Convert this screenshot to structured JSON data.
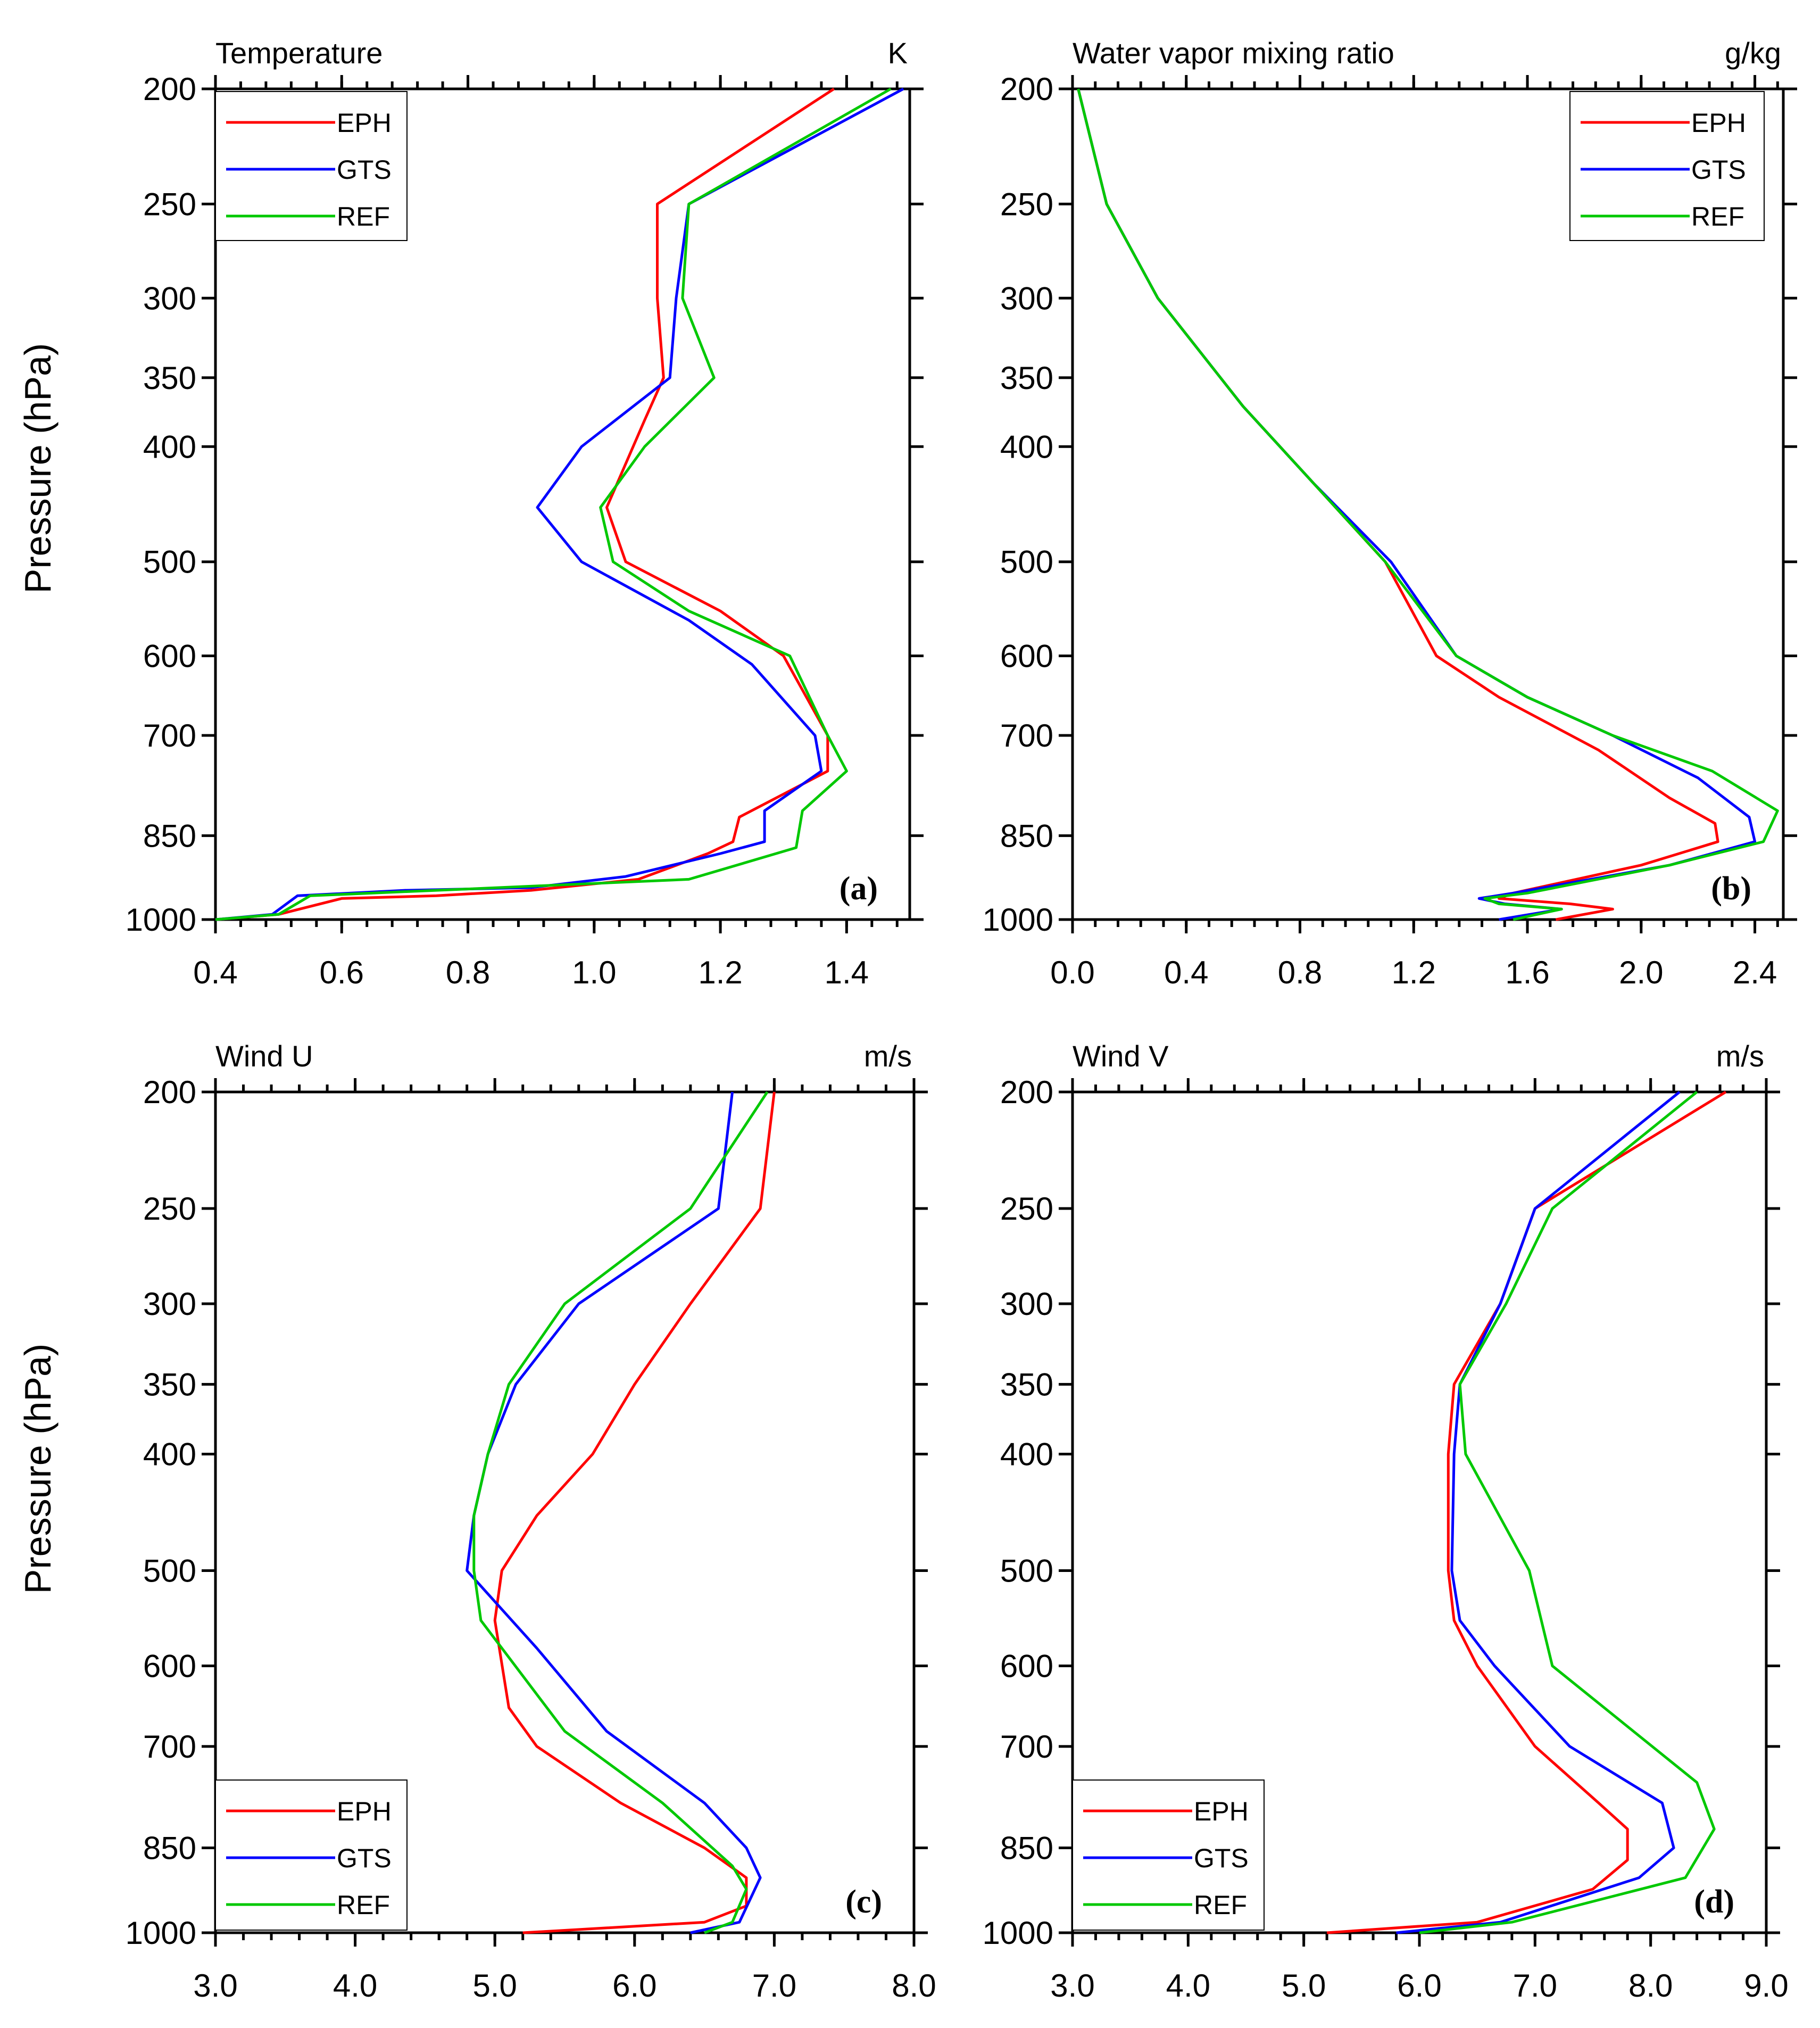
{
  "figure": {
    "ylabel": "Pressure (hPa)"
  },
  "chart_data": [
    {
      "type": "line",
      "panel": "(a)",
      "title": "Temperature",
      "unit": "K",
      "xlim": [
        0.4,
        1.5
      ],
      "xticks": [
        "0.4",
        "0.6",
        "0.8",
        "1.0",
        "1.2",
        "1.4"
      ],
      "xtick_values": [
        0.4,
        0.6,
        0.8,
        1.0,
        1.2,
        1.4
      ],
      "ylabel": "Pressure (hPa)",
      "ylim": [
        1000,
        200
      ],
      "yticks": [
        200,
        250,
        300,
        350,
        400,
        500,
        600,
        700,
        850,
        1000
      ],
      "legend": {
        "position": "top-left",
        "entries": [
          "EPH",
          "GTS",
          "REF"
        ]
      },
      "series": [
        {
          "name": "EPH",
          "color": "#ff0000",
          "x": [
            0.4,
            0.5,
            0.6,
            0.75,
            0.9,
            1.07,
            1.18,
            1.22,
            1.23,
            1.37,
            1.37,
            1.3,
            1.2,
            1.05,
            1.02,
            1.08,
            1.11,
            1.1,
            1.1,
            1.38
          ],
          "y": [
            1000,
            990,
            960,
            955,
            945,
            925,
            880,
            860,
            820,
            750,
            700,
            600,
            550,
            500,
            450,
            380,
            350,
            300,
            250,
            200
          ]
        },
        {
          "name": "GTS",
          "color": "#0000ff",
          "x": [
            0.4,
            0.49,
            0.53,
            0.7,
            0.9,
            1.05,
            1.2,
            1.27,
            1.27,
            1.36,
            1.35,
            1.25,
            1.15,
            0.98,
            0.91,
            0.98,
            1.12,
            1.13,
            1.15,
            1.49
          ],
          "y": [
            1000,
            990,
            955,
            945,
            940,
            920,
            880,
            860,
            810,
            750,
            700,
            610,
            560,
            500,
            450,
            400,
            350,
            300,
            250,
            200
          ]
        },
        {
          "name": "REF",
          "color": "#00c800",
          "x": [
            0.4,
            0.5,
            0.55,
            0.75,
            0.95,
            1.15,
            1.32,
            1.33,
            1.4,
            1.37,
            1.31,
            1.15,
            1.03,
            1.01,
            1.08,
            1.19,
            1.14,
            1.15,
            1.47
          ],
          "y": [
            1000,
            990,
            955,
            945,
            935,
            925,
            870,
            810,
            750,
            700,
            600,
            550,
            500,
            450,
            400,
            350,
            300,
            250,
            200
          ]
        }
      ]
    },
    {
      "type": "line",
      "panel": "(b)",
      "title": "Water vapor mixing ratio",
      "unit": "g/kg",
      "xlim": [
        0.0,
        2.5
      ],
      "xticks": [
        "0.0",
        "0.4",
        "0.8",
        "1.2",
        "1.6",
        "2.0",
        "2.4"
      ],
      "xtick_values": [
        0.0,
        0.4,
        0.8,
        1.2,
        1.6,
        2.0,
        2.4
      ],
      "ylim": [
        1000,
        200
      ],
      "yticks": [
        200,
        250,
        300,
        350,
        400,
        500,
        600,
        700,
        850,
        1000
      ],
      "legend": {
        "position": "top-right",
        "entries": [
          "EPH",
          "GTS",
          "REF"
        ]
      },
      "series": [
        {
          "name": "EPH",
          "color": "#ff0000",
          "x": [
            0.02,
            0.12,
            0.3,
            0.6,
            0.85,
            1.1,
            1.28,
            1.5,
            1.85,
            2.1,
            2.26,
            2.27,
            2.0,
            1.55,
            1.5,
            1.75,
            1.9,
            1.7
          ],
          "y": [
            200,
            250,
            300,
            370,
            430,
            500,
            600,
            650,
            720,
            790,
            830,
            860,
            900,
            950,
            960,
            970,
            980,
            1000
          ]
        },
        {
          "name": "GTS",
          "color": "#0000ff",
          "x": [
            0.02,
            0.12,
            0.3,
            0.6,
            0.85,
            1.12,
            1.35,
            1.6,
            1.9,
            2.2,
            2.38,
            2.4,
            2.1,
            1.55,
            1.43,
            1.52,
            1.72,
            1.5
          ],
          "y": [
            200,
            250,
            300,
            370,
            430,
            500,
            600,
            650,
            700,
            760,
            820,
            860,
            900,
            950,
            960,
            970,
            980,
            1000
          ]
        },
        {
          "name": "REF",
          "color": "#00c800",
          "x": [
            0.02,
            0.12,
            0.3,
            0.6,
            0.85,
            1.1,
            1.35,
            1.6,
            1.9,
            2.25,
            2.48,
            2.43,
            2.1,
            1.6,
            1.45,
            1.5,
            1.72,
            1.55
          ],
          "y": [
            200,
            250,
            300,
            370,
            430,
            500,
            600,
            650,
            700,
            750,
            810,
            860,
            900,
            950,
            960,
            970,
            980,
            1000
          ]
        }
      ]
    },
    {
      "type": "line",
      "panel": "(c)",
      "title": "Wind U",
      "unit": "m/s",
      "xlim": [
        3.0,
        8.0
      ],
      "xticks": [
        "3.0",
        "4.0",
        "5.0",
        "6.0",
        "7.0",
        "8.0"
      ],
      "xtick_values": [
        3.0,
        4.0,
        5.0,
        6.0,
        7.0,
        8.0
      ],
      "ylabel": "Pressure (hPa)",
      "ylim": [
        1000,
        200
      ],
      "yticks": [
        200,
        250,
        300,
        350,
        400,
        500,
        600,
        700,
        850,
        1000
      ],
      "legend": {
        "position": "bottom-left",
        "entries": [
          "EPH",
          "GTS",
          "REF"
        ]
      },
      "series": [
        {
          "name": "EPH",
          "color": "#ff0000",
          "x": [
            7.0,
            6.9,
            6.4,
            6.0,
            5.7,
            5.3,
            5.05,
            5.0,
            5.1,
            5.3,
            5.9,
            6.5,
            6.8,
            6.8,
            6.5,
            5.2
          ],
          "y": [
            200,
            250,
            300,
            350,
            400,
            450,
            500,
            550,
            650,
            700,
            780,
            850,
            900,
            950,
            980,
            1000
          ]
        },
        {
          "name": "GTS",
          "color": "#0000ff",
          "x": [
            6.7,
            6.6,
            5.6,
            5.15,
            4.95,
            4.85,
            4.8,
            5.3,
            5.8,
            6.5,
            6.8,
            6.9,
            6.75,
            6.4
          ],
          "y": [
            200,
            250,
            300,
            350,
            400,
            450,
            500,
            580,
            680,
            780,
            850,
            900,
            980,
            1000
          ]
        },
        {
          "name": "REF",
          "color": "#00c800",
          "x": [
            6.95,
            6.4,
            5.5,
            5.1,
            4.95,
            4.85,
            4.85,
            4.9,
            5.5,
            6.2,
            6.7,
            6.8,
            6.7,
            6.5
          ],
          "y": [
            200,
            250,
            300,
            350,
            400,
            450,
            500,
            550,
            680,
            780,
            880,
            920,
            980,
            1000
          ]
        }
      ]
    },
    {
      "type": "line",
      "panel": "(d)",
      "title": "Wind V",
      "unit": "m/s",
      "xlim": [
        3.0,
        9.0
      ],
      "xticks": [
        "3.0",
        "4.0",
        "5.0",
        "6.0",
        "7.0",
        "8.0",
        "9.0"
      ],
      "xtick_values": [
        3.0,
        4.0,
        5.0,
        6.0,
        7.0,
        8.0,
        9.0
      ],
      "ylim": [
        1000,
        200
      ],
      "yticks": [
        200,
        250,
        300,
        350,
        400,
        500,
        600,
        700,
        850,
        1000
      ],
      "legend": {
        "position": "bottom-left",
        "entries": [
          "EPH",
          "GTS",
          "REF"
        ]
      },
      "series": [
        {
          "name": "EPH",
          "color": "#ff0000",
          "x": [
            8.65,
            7.0,
            6.7,
            6.3,
            6.25,
            6.25,
            6.3,
            6.5,
            7.0,
            7.55,
            7.8,
            7.8,
            7.5,
            6.5,
            5.2
          ],
          "y": [
            200,
            250,
            300,
            350,
            400,
            500,
            550,
            600,
            700,
            780,
            820,
            870,
            920,
            980,
            1000
          ]
        },
        {
          "name": "GTS",
          "color": "#0000ff",
          "x": [
            8.25,
            7.0,
            6.7,
            6.35,
            6.3,
            6.28,
            6.35,
            6.65,
            7.3,
            8.1,
            8.2,
            7.9,
            6.7,
            5.8
          ],
          "y": [
            200,
            250,
            300,
            350,
            400,
            500,
            550,
            600,
            700,
            780,
            850,
            900,
            980,
            1000
          ]
        },
        {
          "name": "REF",
          "color": "#00c800",
          "x": [
            8.4,
            7.15,
            6.75,
            6.35,
            6.4,
            6.95,
            7.15,
            8.4,
            8.55,
            8.3,
            6.8,
            6.0
          ],
          "y": [
            200,
            250,
            300,
            350,
            400,
            500,
            600,
            750,
            820,
            900,
            980,
            1000
          ]
        }
      ]
    }
  ]
}
